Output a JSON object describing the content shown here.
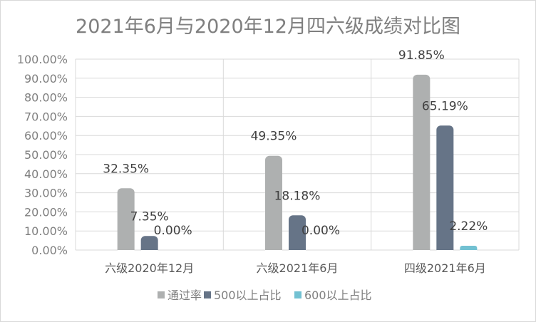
{
  "chart_data": {
    "type": "bar",
    "title": "2021年6月与2020年12月四六级成绩对比图",
    "categories": [
      "六级2020年12月",
      "六级2021年6月",
      "四级2021年6月"
    ],
    "series": [
      {
        "name": "通过率",
        "color": "#aeb0b0",
        "values": [
          32.35,
          49.35,
          91.85
        ],
        "labels": [
          "32.35%",
          "49.35%",
          "91.85%"
        ]
      },
      {
        "name": "500以上占比",
        "color": "#667487",
        "values": [
          7.35,
          18.18,
          65.19
        ],
        "labels": [
          "7.35%",
          "18.18%",
          "65.19%"
        ]
      },
      {
        "name": "600以上占比",
        "color": "#72c1d2",
        "values": [
          0.0,
          0.0,
          2.22
        ],
        "labels": [
          "0.00%",
          "0.00%",
          "2.22%"
        ]
      }
    ],
    "yticks": [
      "0.00%",
      "10.00%",
      "20.00%",
      "30.00%",
      "40.00%",
      "50.00%",
      "60.00%",
      "70.00%",
      "80.00%",
      "90.00%",
      "100.00%"
    ],
    "ylim": [
      0,
      100
    ],
    "grid": true,
    "legend_position": "bottom"
  }
}
